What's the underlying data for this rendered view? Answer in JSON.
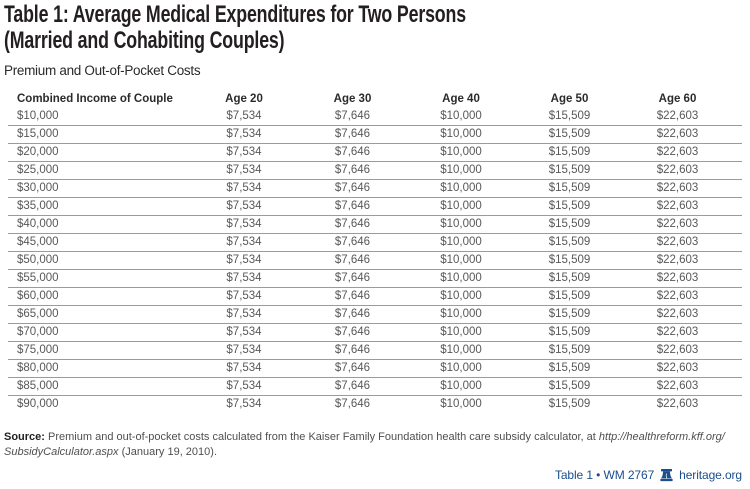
{
  "title": {
    "line1": "Table 1: Average Medical Expenditures for Two Persons",
    "line2": "(Married and Cohabiting Couples)"
  },
  "subtitle": "Premium and Out-of-Pocket Costs",
  "table": {
    "columns": [
      "Combined Income of Couple",
      "Age 20",
      "Age 30",
      "Age 40",
      "Age 50",
      "Age 60"
    ],
    "rows": [
      [
        "$10,000",
        "$7,534",
        "$7,646",
        "$10,000",
        "$15,509",
        "$22,603"
      ],
      [
        "$15,000",
        "$7,534",
        "$7,646",
        "$10,000",
        "$15,509",
        "$22,603"
      ],
      [
        "$20,000",
        "$7,534",
        "$7,646",
        "$10,000",
        "$15,509",
        "$22,603"
      ],
      [
        "$25,000",
        "$7,534",
        "$7,646",
        "$10,000",
        "$15,509",
        "$22,603"
      ],
      [
        "$30,000",
        "$7,534",
        "$7,646",
        "$10,000",
        "$15,509",
        "$22,603"
      ],
      [
        "$35,000",
        "$7,534",
        "$7,646",
        "$10,000",
        "$15,509",
        "$22,603"
      ],
      [
        "$40,000",
        "$7,534",
        "$7,646",
        "$10,000",
        "$15,509",
        "$22,603"
      ],
      [
        "$45,000",
        "$7,534",
        "$7,646",
        "$10,000",
        "$15,509",
        "$22,603"
      ],
      [
        "$50,000",
        "$7,534",
        "$7,646",
        "$10,000",
        "$15,509",
        "$22,603"
      ],
      [
        "$55,000",
        "$7,534",
        "$7,646",
        "$10,000",
        "$15,509",
        "$22,603"
      ],
      [
        "$60,000",
        "$7,534",
        "$7,646",
        "$10,000",
        "$15,509",
        "$22,603"
      ],
      [
        "$65,000",
        "$7,534",
        "$7,646",
        "$10,000",
        "$15,509",
        "$22,603"
      ],
      [
        "$70,000",
        "$7,534",
        "$7,646",
        "$10,000",
        "$15,509",
        "$22,603"
      ],
      [
        "$75,000",
        "$7,534",
        "$7,646",
        "$10,000",
        "$15,509",
        "$22,603"
      ],
      [
        "$80,000",
        "$7,534",
        "$7,646",
        "$10,000",
        "$15,509",
        "$22,603"
      ],
      [
        "$85,000",
        "$7,534",
        "$7,646",
        "$10,000",
        "$15,509",
        "$22,603"
      ],
      [
        "$90,000",
        "$7,534",
        "$7,646",
        "$10,000",
        "$15,509",
        "$22,603"
      ]
    ]
  },
  "source": {
    "label": "Source:",
    "text": " Premium and out-of-pocket costs calculated from the Kaiser Family Foundation health care subsidy calculator, at ",
    "url_part1": "http://healthreform.kff.org/",
    "url_part2": "SubsidyCalculator.aspx",
    "suffix": " (January 19, 2010)."
  },
  "footer": {
    "publication": "Table 1 • WM 2767",
    "site": "heritage.org",
    "icon": "heritage-liberty-bell-icon"
  },
  "colors": {
    "title_text": "#231f20",
    "table_value_text": "#58585a",
    "row_divider": "#9b9b9d",
    "footer_blue": "#1b4e8c"
  }
}
